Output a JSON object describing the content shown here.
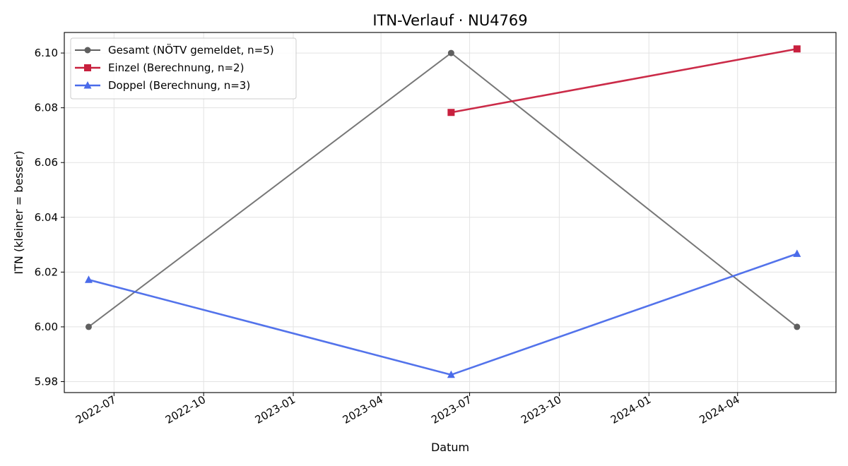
{
  "chart_data": {
    "type": "line",
    "title": "ITN-Verlauf · NU4769",
    "xlabel": "Datum",
    "ylabel": "ITN  (kleiner = besser)",
    "x_type": "date",
    "xlim": [
      "2022-05-11",
      "2024-07-11"
    ],
    "ylim": [
      5.976,
      6.1075
    ],
    "x_ticks": [
      "2022-07",
      "2022-10",
      "2023-01",
      "2023-04",
      "2023-07",
      "2023-10",
      "2024-01",
      "2024-04"
    ],
    "y_ticks": [
      "5.98",
      "6.00",
      "6.02",
      "6.04",
      "6.06",
      "6.08",
      "6.10"
    ],
    "grid": true,
    "legend_position": "top-left",
    "series": [
      {
        "name": "Gesamt (NÖTV gemeldet, n=5)",
        "color": "#5f5f5f",
        "marker": "circle",
        "points": [
          {
            "x": "2022-06-05",
            "y": 6.0
          },
          {
            "x": "2023-06-12",
            "y": 6.1
          },
          {
            "x": "2024-06-01",
            "y": 6.0
          }
        ]
      },
      {
        "name": "Einzel (Berechnung, n=2)",
        "color": "#c8203e",
        "marker": "square",
        "points": [
          {
            "x": "2023-06-12",
            "y": 6.0783
          },
          {
            "x": "2024-06-01",
            "y": 6.1015
          }
        ]
      },
      {
        "name": "Doppel (Berechnung, n=3)",
        "color": "#4a6bea",
        "marker": "triangle",
        "points": [
          {
            "x": "2022-06-05",
            "y": 6.0172
          },
          {
            "x": "2023-06-12",
            "y": 5.9825
          },
          {
            "x": "2024-06-01",
            "y": 6.0267
          }
        ]
      }
    ]
  }
}
